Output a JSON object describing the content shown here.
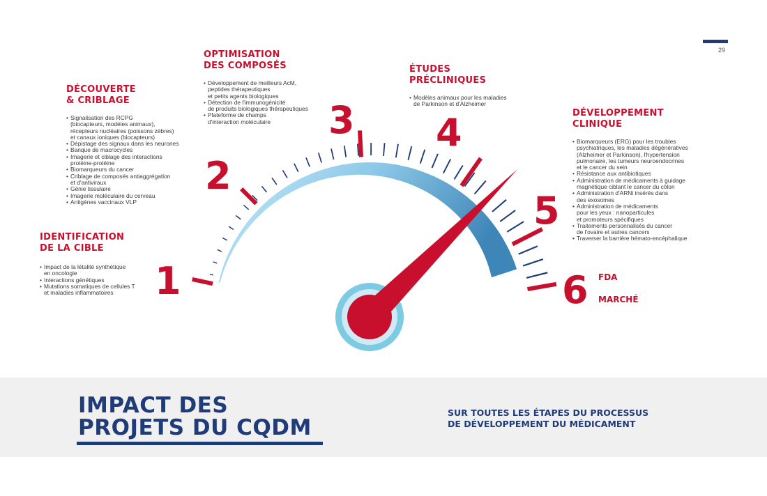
{
  "page_number": "29",
  "stages": [
    {
      "number": "1",
      "title": "IDENTIFICATION\nDE LA CIBLE",
      "items": [
        "Impact de la létalité synthétique\nen oncologie",
        "Interactions génétiques",
        "Mutations somatiques de cellules T\net maladies inflammatoires"
      ]
    },
    {
      "number": "2",
      "title": "DÉCOUVERTE\n& CRIBLAGE",
      "items": [
        "Signalisation des RCPG\n(biocapteurs, modèles animaux),\nrécepteurs nucléaires (poissons zèbres)\net canaux ioniques (biocapteurs)",
        "Dépistage des signaux dans les neurones",
        "Banque de macrocycles",
        "Imagerie et ciblage des interactions\nprotéine-protéine",
        "Biomarqueurs du cancer",
        "Criblage de composés antiaggrégation\net d'antiviraux",
        "Génie tissulaire",
        "Imagerie moléculaire du cerveau",
        "Antigènes vaccinaux VLP"
      ]
    },
    {
      "number": "3",
      "title": "OPTIMISATION\nDES COMPOSÉS",
      "items": [
        "Développement de meilleurs AcM,\npeptides thérapeutiques\net petits agents biologiques",
        "Détection de l'immunogénicité\nde produits biologiques thérapeutiques",
        "Plateforme de champs\nd'interaction moléculaire"
      ]
    },
    {
      "number": "4",
      "title": "ÉTUDES\nPRÉCLINIQUES",
      "items": [
        "Modèles animaux pour les maladies\nde Parkinson et d'Alzheimer"
      ]
    },
    {
      "number": "5",
      "title": "DÉVELOPPEMENT\nCLINIQUE",
      "items": [
        "Biomarqueurs (ERG) pour les troubles\npsychiatriques, les maladies dégénératives\n(Alzheimer et Parkinson), l'hypertension\npulmonaire, les tumeurs neuroendocrines\net le cancer du sein",
        "Résistance aux antibiotiques",
        "Administration de médicaments à guidage\nmagnétique ciblant le cancer du côlon",
        "Administration d'ARNi insérés dans\ndes exosomes",
        "Administration de médicaments\npour les yeux : nanoparticules\net promoteurs spécifiques",
        "Traitements personnalisés du cancer\nde l'ovaire et autres cancers",
        "Traverser la barrière hémato-encéphalique"
      ]
    },
    {
      "number": "6",
      "labels": [
        "FDA",
        "MARCHÉ"
      ]
    }
  ],
  "footer": {
    "title": "IMPACT DES\nPROJETS DU CQDM",
    "subtitle": "SUR TOUTES LES ÉTAPES DU PROCESSUS\nDE DÉVELOPPEMENT DU MÉDICAMENT"
  },
  "colors": {
    "accent_red": "#c8102e",
    "navy": "#1f3b78",
    "gauge_light_blue": "#a8dcf4",
    "gauge_blue": "#4a8fc0",
    "hub_blue": "#7ccbe3"
  },
  "gauge": {
    "needle_stage": 5
  }
}
